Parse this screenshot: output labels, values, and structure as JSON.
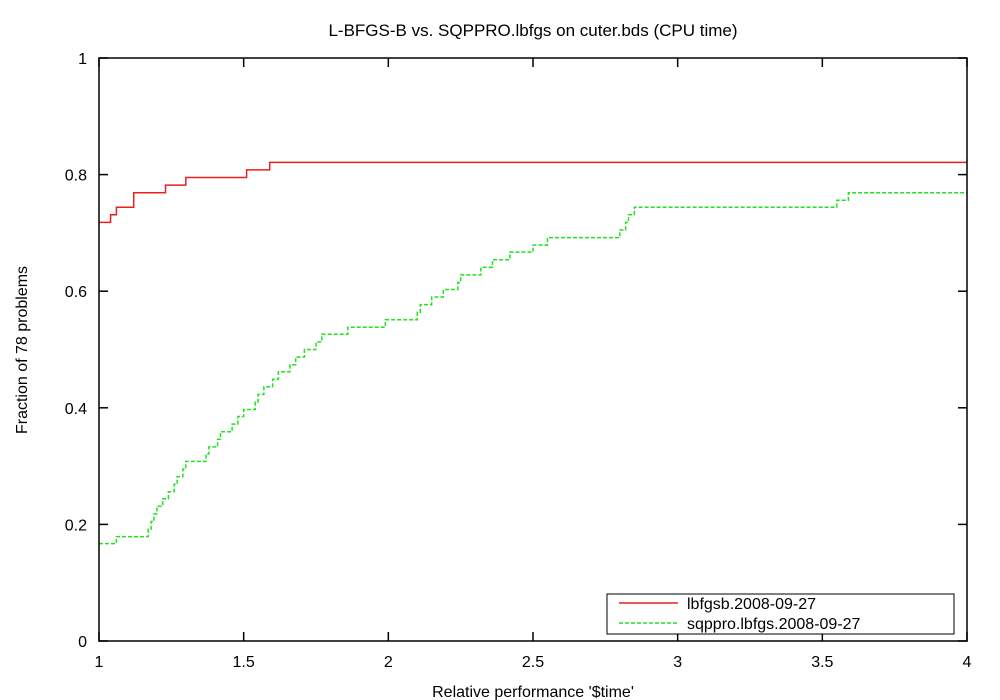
{
  "chart_data": {
    "type": "line",
    "title": "L-BFGS-B vs. SQPPRO.lbfgs on cuter.bds (CPU time)",
    "xlabel": "Relative performance '$time'",
    "ylabel": "Fraction of 78 problems",
    "xlim": [
      1,
      4
    ],
    "ylim": [
      0,
      1
    ],
    "xticks": [
      1,
      1.5,
      2,
      2.5,
      3,
      3.5,
      4
    ],
    "xtick_labels": [
      "1",
      "1.5",
      "2",
      "2.5",
      "3",
      "3.5",
      "4"
    ],
    "yticks": [
      0,
      0.2,
      0.4,
      0.6,
      0.8,
      1
    ],
    "ytick_labels": [
      "0",
      "0.2",
      "0.4",
      "0.6",
      "0.8",
      "1"
    ],
    "grid": false,
    "legend_position": "bottom-right",
    "series": [
      {
        "name": "lbfgsb.2008-09-27",
        "color": "#e8201e",
        "dash": "solid",
        "step": true,
        "points": [
          [
            1.0,
            0.718
          ],
          [
            1.04,
            0.731
          ],
          [
            1.06,
            0.744
          ],
          [
            1.12,
            0.769
          ],
          [
            1.23,
            0.782
          ],
          [
            1.3,
            0.795
          ],
          [
            1.51,
            0.808
          ],
          [
            1.59,
            0.821
          ],
          [
            4.0,
            0.821
          ]
        ]
      },
      {
        "name": "sqppro.lbfgs.2008-09-27",
        "color": "#22e022",
        "dash": "dashed",
        "step": true,
        "points": [
          [
            1.0,
            0.167
          ],
          [
            1.06,
            0.179
          ],
          [
            1.17,
            0.192
          ],
          [
            1.18,
            0.205
          ],
          [
            1.19,
            0.218
          ],
          [
            1.2,
            0.231
          ],
          [
            1.22,
            0.244
          ],
          [
            1.24,
            0.256
          ],
          [
            1.26,
            0.269
          ],
          [
            1.27,
            0.282
          ],
          [
            1.29,
            0.295
          ],
          [
            1.3,
            0.308
          ],
          [
            1.37,
            0.321
          ],
          [
            1.38,
            0.333
          ],
          [
            1.41,
            0.346
          ],
          [
            1.42,
            0.359
          ],
          [
            1.46,
            0.372
          ],
          [
            1.48,
            0.385
          ],
          [
            1.5,
            0.397
          ],
          [
            1.54,
            0.41
          ],
          [
            1.55,
            0.423
          ],
          [
            1.57,
            0.436
          ],
          [
            1.6,
            0.449
          ],
          [
            1.62,
            0.462
          ],
          [
            1.66,
            0.474
          ],
          [
            1.68,
            0.487
          ],
          [
            1.71,
            0.5
          ],
          [
            1.75,
            0.513
          ],
          [
            1.77,
            0.526
          ],
          [
            1.86,
            0.538
          ],
          [
            1.99,
            0.551
          ],
          [
            2.1,
            0.564
          ],
          [
            2.11,
            0.577
          ],
          [
            2.15,
            0.59
          ],
          [
            2.19,
            0.603
          ],
          [
            2.24,
            0.615
          ],
          [
            2.25,
            0.628
          ],
          [
            2.32,
            0.641
          ],
          [
            2.36,
            0.654
          ],
          [
            2.42,
            0.667
          ],
          [
            2.5,
            0.679
          ],
          [
            2.55,
            0.692
          ],
          [
            2.8,
            0.705
          ],
          [
            2.82,
            0.718
          ],
          [
            2.83,
            0.731
          ],
          [
            2.85,
            0.744
          ],
          [
            3.55,
            0.756
          ],
          [
            3.59,
            0.769
          ],
          [
            4.0,
            0.769
          ]
        ]
      }
    ]
  }
}
